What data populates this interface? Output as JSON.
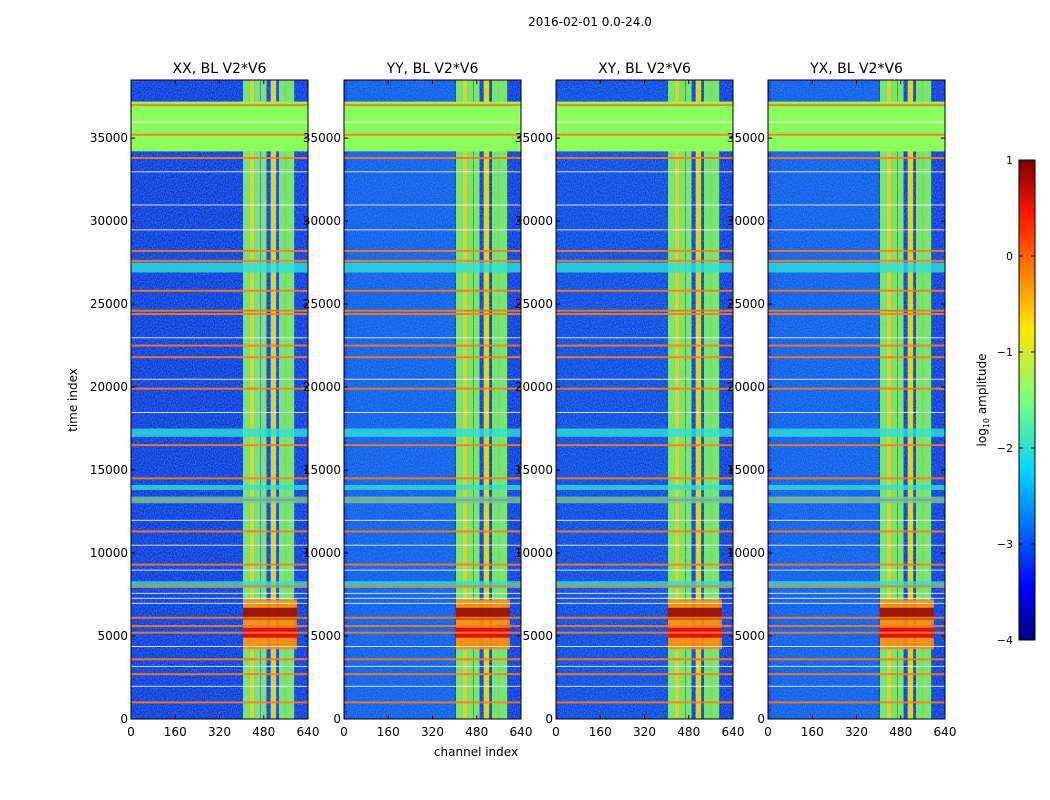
{
  "figure": {
    "suptitle": "2016-02-01 0.0-24.0"
  },
  "colors": {
    "bg_blue": "#0a2fd8",
    "light_blue": "#1ea0ff",
    "cyan": "#2fe0d8",
    "lime": "#8cff5a",
    "yellow": "#f2ee1a",
    "orange": "#ff8a10",
    "red": "#e01010",
    "dark_red": "#8c0000",
    "flag_orange": "#ff7a1a"
  },
  "chart_data": {
    "type": "heatmap",
    "xlabel": "channel index",
    "ylabel": "time index",
    "xlim": [
      0,
      640
    ],
    "ylim": [
      0,
      38500
    ],
    "xticks": [
      0,
      160,
      320,
      480,
      640
    ],
    "yticks": [
      0,
      5000,
      10000,
      15000,
      20000,
      25000,
      30000,
      35000
    ],
    "panels": [
      {
        "title": "XX, BL V2*V6"
      },
      {
        "title": "YY, BL V2*V6"
      },
      {
        "title": "XY, BL V2*V6"
      },
      {
        "title": "YX, BL V2*V6"
      }
    ],
    "colorbar": {
      "label": "log10 amplitude",
      "label_base": "log",
      "label_sub": "10",
      "label_rest": " amplitude",
      "range": [
        -4,
        1
      ],
      "ticks": [
        1,
        0,
        -1,
        -2,
        -3,
        -4
      ],
      "tick_labels": [
        "1",
        "0",
        "−1",
        "−2",
        "−3",
        "−4"
      ],
      "colormap": "jet"
    },
    "bright_channel_bands": [
      [
        405,
        430
      ],
      [
        430,
        445
      ],
      [
        445,
        468
      ],
      [
        470,
        490
      ],
      [
        505,
        525
      ],
      [
        535,
        560
      ],
      [
        560,
        590
      ]
    ],
    "flagged_time_ranges": [
      [
        34200,
        37200
      ],
      [
        26900,
        27500
      ],
      [
        17000,
        17500
      ],
      [
        13000,
        13400
      ],
      [
        13800,
        14100
      ],
      [
        7900,
        8300
      ]
    ],
    "strong_rfi_time_range": [
      4200,
      7200
    ],
    "orange_flag_lines": [
      37000,
      35200,
      33800,
      28200,
      27600,
      25800,
      24600,
      24400,
      22500,
      21800,
      19900,
      16500,
      14500,
      13200,
      11300,
      9300,
      8000,
      6100,
      5600,
      5200,
      3600,
      2700,
      1000
    ]
  }
}
